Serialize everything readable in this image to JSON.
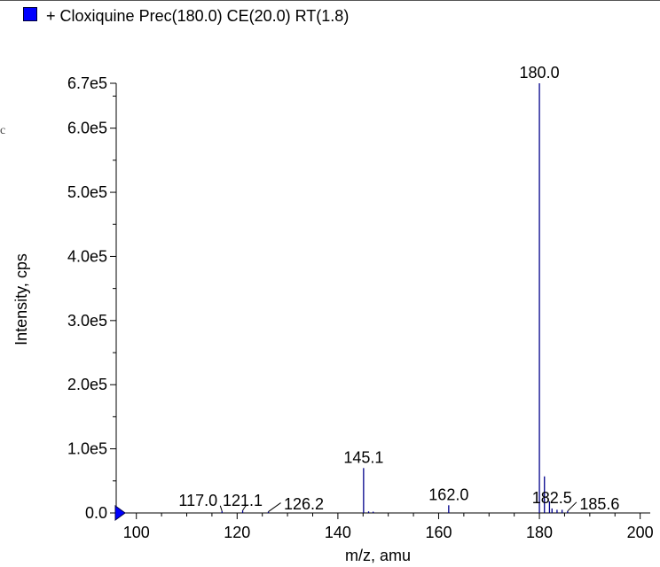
{
  "legend": {
    "text": "+ Cloxiquine Prec(180.0) CE(20.0) RT(1.8)",
    "swatch_color": "#0000ff"
  },
  "edge_glyph": "c",
  "chart_data": {
    "type": "bar",
    "title": "",
    "xlabel": "m/z, amu",
    "ylabel": "Intensity, cps",
    "xlim": [
      96,
      202
    ],
    "ylim": [
      0,
      670000
    ],
    "x_ticks": [
      100,
      120,
      140,
      160,
      180,
      200
    ],
    "x_tick_labels": [
      "100",
      "120",
      "140",
      "160",
      "180",
      "200"
    ],
    "y_ticks": [
      0,
      100000,
      200000,
      300000,
      400000,
      500000,
      600000,
      670000
    ],
    "y_tick_labels": [
      "0.0",
      "1.0e5",
      "2.0e5",
      "3.0e5",
      "4.0e5",
      "5.0e5",
      "6.0e5",
      "6.7e5"
    ],
    "bar_color": "#00008b",
    "peaks": [
      {
        "mz": 117.0,
        "intensity": 3000
      },
      {
        "mz": 121.1,
        "intensity": 4000
      },
      {
        "mz": 126.2,
        "intensity": 2000
      },
      {
        "mz": 145.1,
        "intensity": 70000
      },
      {
        "mz": 146.1,
        "intensity": 2500
      },
      {
        "mz": 147.0,
        "intensity": 2000
      },
      {
        "mz": 162.0,
        "intensity": 12000
      },
      {
        "mz": 180.0,
        "intensity": 670000
      },
      {
        "mz": 181.0,
        "intensity": 57000
      },
      {
        "mz": 182.0,
        "intensity": 18000
      },
      {
        "mz": 182.5,
        "intensity": 7000
      },
      {
        "mz": 183.5,
        "intensity": 5000
      },
      {
        "mz": 184.5,
        "intensity": 5000
      },
      {
        "mz": 185.6,
        "intensity": 3000
      }
    ],
    "annotations": [
      {
        "label": "117.0",
        "mz": 117.0,
        "leader": true
      },
      {
        "label": "121.1",
        "mz": 121.1,
        "leader": true
      },
      {
        "label": "126.2",
        "mz": 126.2,
        "leader": true
      },
      {
        "label": "145.1",
        "mz": 145.1,
        "leader": false
      },
      {
        "label": "162.0",
        "mz": 162.0,
        "leader": false
      },
      {
        "label": "180.0",
        "mz": 180.0,
        "leader": false
      },
      {
        "label": "182.5",
        "mz": 182.5,
        "leader": false
      },
      {
        "label": "185.6",
        "mz": 185.6,
        "leader": true
      }
    ]
  }
}
